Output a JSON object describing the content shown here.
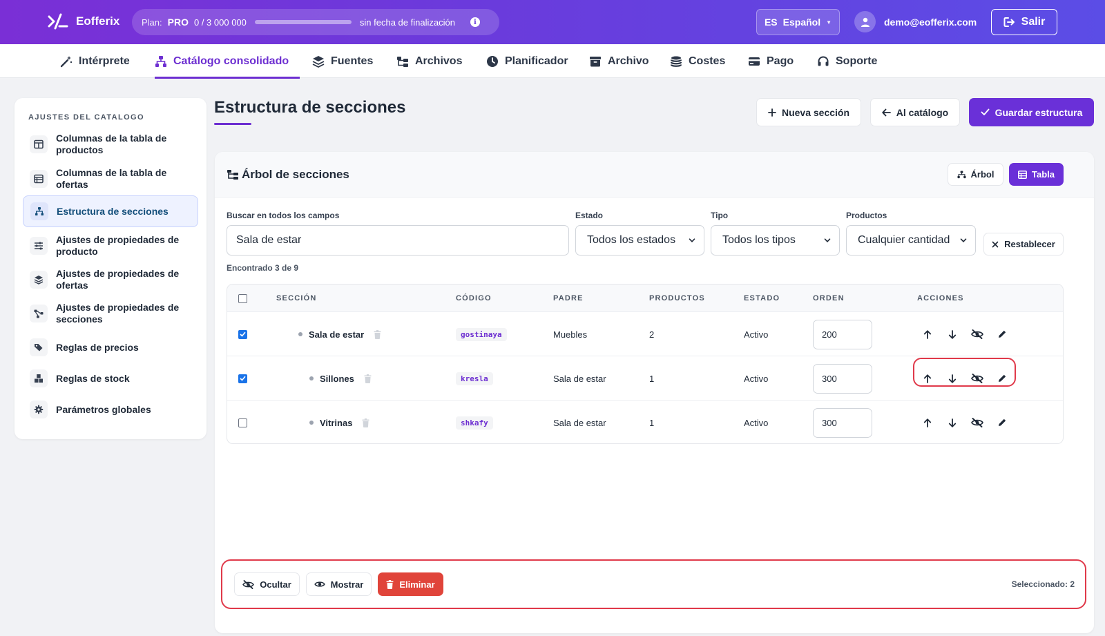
{
  "app": {
    "name": "Eofferix"
  },
  "plan": {
    "label": "Plan:",
    "tier": "PRO",
    "usage": "0  /  3 000 000",
    "usage_fraction": 0.0,
    "expiry": "sin fecha de finalización"
  },
  "lang": {
    "code": "ES",
    "name": "Español"
  },
  "user": {
    "email": "demo@eofferix.com"
  },
  "logout_label": "Salir",
  "nav": [
    {
      "label": "Intérprete",
      "icon": "magic-wand-icon"
    },
    {
      "label": "Catálogo consolidado",
      "icon": "sitemap-icon",
      "active": true
    },
    {
      "label": "Fuentes",
      "icon": "layers-icon"
    },
    {
      "label": "Archivos",
      "icon": "folder-tree-icon"
    },
    {
      "label": "Planificador",
      "icon": "clock-icon"
    },
    {
      "label": "Archivo",
      "icon": "archive-icon"
    },
    {
      "label": "Costes",
      "icon": "coins-icon"
    },
    {
      "label": "Pago",
      "icon": "credit-card-icon"
    },
    {
      "label": "Soporte",
      "icon": "headset-icon"
    }
  ],
  "sidebar": {
    "heading": "AJUSTES DEL CATALOGO",
    "items": [
      {
        "label": "Columnas de la tabla de productos",
        "icon": "columns-icon"
      },
      {
        "label": "Columnas de la tabla de ofertas",
        "icon": "table-list-icon"
      },
      {
        "label": "Estructura de secciones",
        "icon": "sitemap-icon",
        "active": true
      },
      {
        "label": "Ajustes de propiedades de producto",
        "icon": "sliders-icon"
      },
      {
        "label": "Ajustes de propiedades de ofertas",
        "icon": "layers-icon"
      },
      {
        "label": "Ajustes de propiedades de secciones",
        "icon": "diagram-icon"
      },
      {
        "label": "Reglas de precios",
        "icon": "tags-icon"
      },
      {
        "label": "Reglas de stock",
        "icon": "boxes-icon"
      },
      {
        "label": "Parámetros globales",
        "icon": "gear-icon"
      }
    ]
  },
  "page": {
    "title": "Estructura de secciones",
    "actions": {
      "new_section": "Nueva sección",
      "to_catalog": "Al catálogo",
      "save": "Guardar estructura"
    }
  },
  "card": {
    "title": "Árbol de secciones",
    "view_tree": "Árbol",
    "view_table": "Tabla"
  },
  "filters": {
    "search_label": "Buscar en todos los campos",
    "search_value": "Sala de estar",
    "status_label": "Estado",
    "status_value": "Todos los estados",
    "type_label": "Tipo",
    "type_value": "Todos los tipos",
    "products_label": "Productos",
    "products_value": "Cualquier cantidad",
    "reset": "Restablecer",
    "found": "Encontrado 3 de 9"
  },
  "table": {
    "headers": {
      "section": "SECCIÓN",
      "code": "CÓDIGO",
      "parent": "PADRE",
      "products": "PRODUCTOS",
      "status": "ESTADO",
      "order": "ORDEN",
      "actions": "ACCIONES"
    },
    "rows": [
      {
        "checked": true,
        "name": "Sala de estar",
        "code": "gostinaya",
        "parent": "Muebles",
        "products": "2",
        "status": "Activo",
        "order": "200",
        "indent": 0
      },
      {
        "checked": true,
        "name": "Sillones",
        "code": "kresla",
        "parent": "Sala de estar",
        "products": "1",
        "status": "Activo",
        "order": "300",
        "indent": 1
      },
      {
        "checked": false,
        "name": "Vitrinas",
        "code": "shkafy",
        "parent": "Sala de estar",
        "products": "1",
        "status": "Activo",
        "order": "300",
        "indent": 1
      }
    ]
  },
  "bulk": {
    "hide": "Ocultar",
    "show": "Mostrar",
    "delete": "Eliminar",
    "selected": "Seleccionado: 2"
  },
  "colors": {
    "accent": "#6a30d8",
    "danger": "#e0443a",
    "highlight": "#e0394a"
  }
}
